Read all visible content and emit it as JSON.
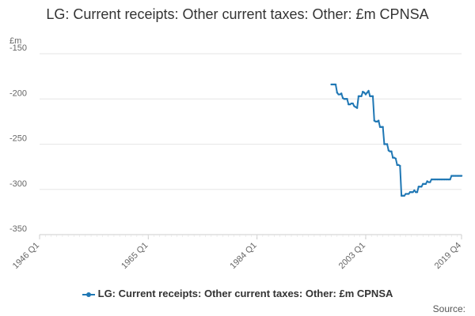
{
  "colors": {
    "series": "#1f77b4",
    "grid": "#e6e6e6",
    "axis": "#cccccc",
    "text": "#666666"
  },
  "source_label": "Source:",
  "chart_data": {
    "type": "line",
    "title": "LG: Current receipts: Other current taxes: Other: £m CPNSA",
    "unit_label": "£m",
    "y_ticks": [
      -150,
      -200,
      -250,
      -300,
      -350
    ],
    "ylim": [
      -350,
      -150
    ],
    "x_tick_labels": [
      "1946 Q1",
      "1965 Q1",
      "1984 Q1",
      "2003 Q1",
      "2019 Q4"
    ],
    "x_range": [
      "1946 Q1",
      "2019 Q4"
    ],
    "grid": true,
    "legend_position": "bottom",
    "series": [
      {
        "name": "LG: Current receipts: Other current taxes: Other: £m CPNSA",
        "points": [
          [
            "1997 Q1",
            -184
          ],
          [
            "1997 Q2",
            -184
          ],
          [
            "1997 Q3",
            -184
          ],
          [
            "1997 Q4",
            -184
          ],
          [
            "1998 Q1",
            -193
          ],
          [
            "1998 Q2",
            -195
          ],
          [
            "1998 Q3",
            -195
          ],
          [
            "1998 Q4",
            -194
          ],
          [
            "1999 Q1",
            -199
          ],
          [
            "1999 Q2",
            -200
          ],
          [
            "1999 Q3",
            -200
          ],
          [
            "1999 Q4",
            -200
          ],
          [
            "2000 Q1",
            -206
          ],
          [
            "2000 Q2",
            -206
          ],
          [
            "2000 Q3",
            -205
          ],
          [
            "2000 Q4",
            -205
          ],
          [
            "2001 Q1",
            -208
          ],
          [
            "2001 Q2",
            -209
          ],
          [
            "2001 Q3",
            -210
          ],
          [
            "2001 Q4",
            -197
          ],
          [
            "2002 Q1",
            -197
          ],
          [
            "2002 Q2",
            -197
          ],
          [
            "2002 Q3",
            -192
          ],
          [
            "2002 Q4",
            -193
          ],
          [
            "2003 Q1",
            -195
          ],
          [
            "2003 Q2",
            -193
          ],
          [
            "2003 Q3",
            -191
          ],
          [
            "2003 Q4",
            -197
          ],
          [
            "2004 Q1",
            -197
          ],
          [
            "2004 Q2",
            -197
          ],
          [
            "2004 Q3",
            -224
          ],
          [
            "2004 Q4",
            -225
          ],
          [
            "2005 Q1",
            -225
          ],
          [
            "2005 Q2",
            -224
          ],
          [
            "2005 Q3",
            -231
          ],
          [
            "2005 Q4",
            -231
          ],
          [
            "2006 Q1",
            -231
          ],
          [
            "2006 Q2",
            -250
          ],
          [
            "2006 Q3",
            -250
          ],
          [
            "2006 Q4",
            -250
          ],
          [
            "2007 Q1",
            -257
          ],
          [
            "2007 Q2",
            -258
          ],
          [
            "2007 Q3",
            -258
          ],
          [
            "2007 Q4",
            -265
          ],
          [
            "2008 Q1",
            -265
          ],
          [
            "2008 Q2",
            -266
          ],
          [
            "2008 Q3",
            -273
          ],
          [
            "2008 Q4",
            -273
          ],
          [
            "2009 Q1",
            -274
          ],
          [
            "2009 Q2",
            -307
          ],
          [
            "2009 Q3",
            -307
          ],
          [
            "2009 Q4",
            -307
          ],
          [
            "2010 Q1",
            -305
          ],
          [
            "2010 Q2",
            -305
          ],
          [
            "2010 Q3",
            -305
          ],
          [
            "2010 Q4",
            -303
          ],
          [
            "2011 Q1",
            -303
          ],
          [
            "2011 Q2",
            -303
          ],
          [
            "2011 Q3",
            -301
          ],
          [
            "2011 Q4",
            -303
          ],
          [
            "2012 Q1",
            -303
          ],
          [
            "2012 Q2",
            -297
          ],
          [
            "2012 Q3",
            -297
          ],
          [
            "2012 Q4",
            -297
          ],
          [
            "2013 Q1",
            -294
          ],
          [
            "2013 Q2",
            -294
          ],
          [
            "2013 Q3",
            -294
          ],
          [
            "2013 Q4",
            -291
          ],
          [
            "2014 Q1",
            -292
          ],
          [
            "2014 Q2",
            -292
          ],
          [
            "2014 Q3",
            -289
          ],
          [
            "2014 Q4",
            -289
          ],
          [
            "2015 Q1",
            -289
          ],
          [
            "2015 Q2",
            -289
          ],
          [
            "2015 Q3",
            -289
          ],
          [
            "2015 Q4",
            -289
          ],
          [
            "2016 Q1",
            -289
          ],
          [
            "2016 Q2",
            -289
          ],
          [
            "2016 Q3",
            -289
          ],
          [
            "2016 Q4",
            -289
          ],
          [
            "2017 Q1",
            -289
          ],
          [
            "2017 Q2",
            -289
          ],
          [
            "2017 Q3",
            -289
          ],
          [
            "2017 Q4",
            -289
          ],
          [
            "2018 Q1",
            -285
          ],
          [
            "2018 Q2",
            -285
          ],
          [
            "2018 Q3",
            -285
          ],
          [
            "2018 Q4",
            -285
          ],
          [
            "2019 Q1",
            -285
          ],
          [
            "2019 Q2",
            -285
          ],
          [
            "2019 Q3",
            -285
          ],
          [
            "2019 Q4",
            -285
          ]
        ]
      }
    ]
  }
}
